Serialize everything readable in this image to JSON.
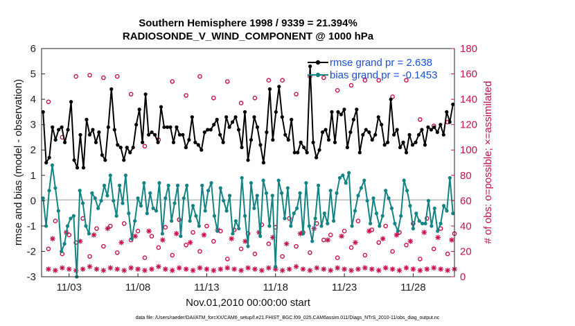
{
  "title_line1": "Southern Hemisphere 1998 / 9339 = 21.394%",
  "title_line2": "RADIOSONDE_V_WIND_COMPONENT @ 1000 hPa",
  "left_ylabel": "rmse and bias (model - observation)",
  "right_ylabel": "# of obs: o=possible; ×=assimilated",
  "xlabel": "Nov.01,2010 00:00:00 start",
  "footer": "data file: /Users/raeder/DAI/ATM_forcXX/CAM6_setup/f.e21.FHIST_BGC.f09_025.CAM6assim.011/Diags_NTrS_2010-11/obs_diag_output.nc",
  "legend": {
    "rmse": "rmse grand pr = 2.638",
    "bias": "bias grand pr = -0.1453"
  },
  "colors": {
    "rmse": "#000000",
    "bias": "#138383",
    "obs": "#c8104a",
    "zero_line": "#bbbbbb"
  },
  "chart_data": {
    "type": "line",
    "x_unit": "days since Nov.01,2010 00:00",
    "xlim": [
      0.5,
      30.5
    ],
    "x_ticks": [
      2.5,
      7.5,
      12.5,
      17.5,
      22.5,
      27.5
    ],
    "x_tick_labels": [
      "11/03",
      "11/08",
      "11/13",
      "11/18",
      "11/23",
      "11/28"
    ],
    "ylim_left": [
      -3,
      6
    ],
    "yticks_left": [
      -3,
      -2,
      -1,
      0,
      1,
      2,
      3,
      4,
      5,
      6
    ],
    "ylim_right": [
      0,
      180
    ],
    "yticks_right": [
      0,
      20,
      40,
      60,
      80,
      100,
      120,
      140,
      160,
      180
    ],
    "grid": false,
    "legend_position": "top-right",
    "series": [
      {
        "name": "rmse",
        "axis": "left",
        "style": "line-dot",
        "values": [
          3.5,
          1.5,
          1.7,
          2.9,
          2.4,
          2.8,
          2.9,
          2.3,
          2.8,
          3.9,
          1.6,
          1.3,
          2.6,
          1.3,
          3.2,
          2.6,
          2.8,
          2.3,
          2.7,
          1.8,
          1.6,
          2.9,
          4.4,
          2.8,
          2.2,
          2.1,
          1.6,
          2.1,
          1.9,
          2.1,
          3.0,
          3.6,
          2.3,
          4.2,
          2.6,
          2.7,
          2.6,
          2.3,
          3.7,
          2.9,
          2.9,
          2.9,
          2.3,
          2.9,
          2.6,
          2.6,
          2.1,
          2.4,
          3.3,
          2.3,
          2.2,
          2.0,
          2.7,
          2.8,
          2.8,
          3.0,
          3.2,
          2.6,
          2.3,
          3.3,
          2.9,
          3.1,
          3.3,
          2.8,
          2.1,
          3.5,
          1.6,
          2.4,
          3.3,
          2.9,
          2.2,
          1.5,
          2.7,
          4.4,
          2.4,
          3.5,
          4.5,
          3.3,
          2.6,
          2.4,
          3.2,
          1.9,
          1.9,
          2.3,
          2.1,
          1.9,
          5.3,
          2.3,
          1.7,
          2.0,
          2.7,
          2.8,
          2.4,
          3.5,
          2.3,
          3.5,
          3.4,
          3.6,
          2.1,
          2.7,
          3.2,
          3.6,
          1.9,
          2.6,
          2.8,
          2.7,
          2.4,
          2.6,
          3.3,
          3.0,
          2.2,
          2.3,
          4.0,
          2.6,
          2.8,
          2.1,
          2.3,
          1.9,
          2.6,
          2.2,
          2.3,
          2.6,
          2.8,
          2.2,
          2.9,
          2.8,
          2.9,
          2.7,
          3.0,
          2.6,
          3.5,
          3.1,
          3.8
        ]
      },
      {
        "name": "bias",
        "axis": "left",
        "style": "line-dot",
        "values": [
          0.1,
          -1.0,
          0.4,
          1.4,
          0.5,
          -0.4,
          -2.0,
          -1.7,
          -1.0,
          -0.7,
          -0.6,
          -3.0,
          0.4,
          -0.1,
          -1.0,
          -1.3,
          0.3,
          0.1,
          -0.3,
          0.0,
          0.6,
          0.2,
          1.0,
          0.0,
          -0.6,
          0.6,
          -0.1,
          1.0,
          -0.5,
          -1.5,
          -0.8,
          0.1,
          -0.2,
          0.7,
          -0.5,
          0.3,
          -0.3,
          -0.4,
          0.7,
          -1.3,
          0.1,
          0.6,
          -0.8,
          -0.1,
          0.6,
          -1.4,
          0.1,
          0.6,
          -0.8,
          -0.2,
          -0.6,
          -1.0,
          0.6,
          -0.4,
          0.4,
          0.7,
          -0.6,
          -1.2,
          0.5,
          0.0,
          -0.4,
          0.2,
          -1.3,
          -0.8,
          -1.1,
          0.9,
          -0.6,
          -1.8,
          0.7,
          -0.3,
          0.2,
          -1.4,
          0.8,
          0.3,
          -1.0,
          0.2,
          -2.6,
          0.8,
          0.3,
          -0.7,
          0.5,
          -1.0,
          -0.5,
          -0.3,
          0.3,
          -1.3,
          0.7,
          -1.0,
          -1.6,
          -0.7,
          0.6,
          -1.0,
          -0.5,
          -0.9,
          0.4,
          -0.8,
          0.3,
          0.9,
          1.0,
          0.7,
          1.1,
          -1.0,
          -0.4,
          0.2,
          0.5,
          0.8,
          0.0,
          -0.9,
          0.1,
          -0.5,
          -1.0,
          -0.6,
          0.4,
          0.1,
          -0.3,
          -0.9,
          -1.2,
          -0.6,
          0.8,
          0.4,
          -0.2,
          -1.1,
          -0.5,
          -0.8,
          -0.9,
          -0.9,
          0.0,
          -1.0,
          -0.3,
          -1.2,
          -0.9,
          -0.2,
          -0.4,
          0.9,
          -0.5
        ]
      },
      {
        "name": "possible obs",
        "axis": "right",
        "style": "marker-circle",
        "x": [
          1.0,
          2.0,
          3.0,
          4.0,
          5.0,
          6.0,
          7.0,
          8.0,
          9.0,
          10.0,
          11.0,
          12.0,
          13.0,
          14.0,
          15.0,
          16.0,
          17.0,
          18.0,
          19.0,
          20.0,
          21.0,
          22.0,
          23.0,
          24.0,
          25.0,
          26.0,
          27.0,
          28.0,
          29.0,
          30.0,
          1.5,
          2.5,
          3.5,
          4.5,
          5.5,
          6.5,
          7.5,
          8.5,
          9.5,
          10.5,
          11.5,
          12.5,
          13.5,
          14.5,
          15.5,
          16.5,
          17.5,
          18.5,
          19.5,
          20.5,
          21.5,
          22.5,
          23.5,
          24.5,
          25.5,
          26.5,
          27.5,
          28.5,
          29.5,
          30.5,
          1.0,
          3.0,
          5.0,
          7.0,
          9.0,
          11.0,
          13.0,
          15.0,
          17.0,
          19.0,
          21.0,
          23.0,
          25.0,
          27.0,
          29.0,
          2.0,
          4.0,
          6.0,
          8.0,
          10.0,
          12.0,
          14.0,
          16.0,
          18.0,
          20.0,
          22.0,
          24.0,
          26.0,
          28.0,
          30.0
        ],
        "values": [
          138,
          110,
          158,
          159,
          157,
          158,
          144,
          103,
          108,
          154,
          143,
          158,
          141,
          154,
          137,
          141,
          155,
          155,
          144,
          158,
          157,
          147,
          151,
          155,
          155,
          142,
          155,
          124,
          119,
          122,
          44,
          33,
          46,
          38,
          40,
          42,
          36,
          32,
          39,
          45,
          35,
          40,
          36,
          37,
          34,
          41,
          39,
          46,
          35,
          42,
          33,
          36,
          44,
          37,
          40,
          35,
          42,
          46,
          38,
          34,
          22,
          27,
          24,
          29,
          23,
          25,
          28,
          22,
          26,
          24,
          29,
          23,
          27,
          25,
          22,
          18,
          16,
          19,
          15,
          17,
          20,
          14,
          18,
          16,
          19,
          15,
          17,
          20,
          14,
          18
        ]
      },
      {
        "name": "assimilated obs",
        "axis": "right",
        "style": "marker-asterisk",
        "x": [
          1.0,
          1.5,
          2.0,
          2.5,
          3.0,
          3.5,
          4.0,
          4.5,
          5.0,
          5.5,
          6.0,
          6.5,
          7.0,
          7.5,
          8.0,
          8.5,
          9.0,
          9.5,
          10.0,
          10.5,
          11.0,
          11.5,
          12.0,
          12.5,
          13.0,
          13.5,
          14.0,
          14.5,
          15.0,
          15.5,
          16.0,
          16.5,
          17.0,
          17.5,
          18.0,
          18.5,
          19.0,
          19.5,
          20.0,
          20.5,
          21.0,
          21.5,
          22.0,
          22.5,
          23.0,
          23.5,
          24.0,
          24.5,
          25.0,
          25.5,
          26.0,
          26.5,
          27.0,
          27.5,
          28.0,
          28.5,
          29.0,
          29.5,
          30.0,
          30.5,
          1.3,
          2.3,
          3.3,
          4.3,
          5.3,
          6.3,
          7.3,
          8.3,
          9.3,
          10.3,
          11.3,
          12.3,
          13.3,
          14.3,
          15.3,
          16.3,
          17.3,
          18.3,
          19.3,
          20.3,
          21.3,
          22.3,
          23.3,
          24.3,
          25.3,
          26.3,
          27.3,
          28.3,
          29.3,
          30.3
        ],
        "values": [
          6,
          5,
          7,
          6,
          5,
          6,
          8,
          6,
          5,
          7,
          6,
          5,
          7,
          6,
          5,
          6,
          8,
          6,
          5,
          7,
          6,
          5,
          7,
          6,
          5,
          6,
          7,
          6,
          5,
          7,
          6,
          5,
          7,
          6,
          5,
          6,
          8,
          6,
          5,
          7,
          6,
          5,
          7,
          6,
          5,
          6,
          7,
          6,
          5,
          7,
          6,
          5,
          7,
          6,
          5,
          6,
          7,
          6,
          5,
          6,
          30,
          35,
          28,
          33,
          38,
          27,
          32,
          36,
          29,
          34,
          27,
          33,
          37,
          30,
          28,
          35,
          31,
          26,
          34,
          38,
          29,
          32,
          27,
          36,
          30,
          33,
          28,
          35,
          31,
          29
        ]
      }
    ]
  }
}
